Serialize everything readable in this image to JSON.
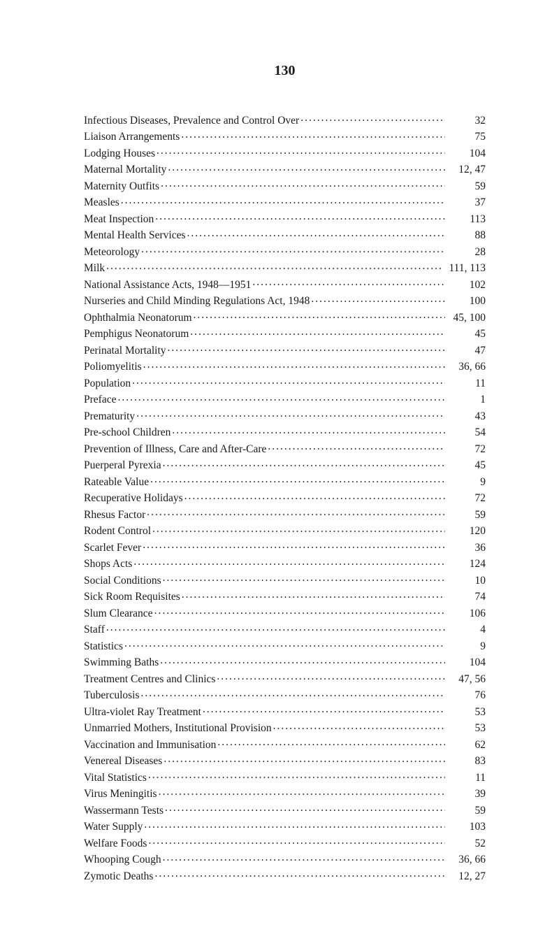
{
  "pageNumber": "130",
  "entries": [
    {
      "label": "Infectious Diseases, Prevalence and Control Over",
      "page": "32"
    },
    {
      "label": "Liaison Arrangements",
      "page": "75"
    },
    {
      "label": "Lodging Houses",
      "page": "104"
    },
    {
      "label": "Maternal Mortality",
      "page": "12, 47"
    },
    {
      "label": "Maternity Outfits",
      "page": "59"
    },
    {
      "label": "Measles",
      "page": "37"
    },
    {
      "label": "Meat Inspection",
      "page": "113"
    },
    {
      "label": "Mental Health Services",
      "page": "88"
    },
    {
      "label": "Meteorology",
      "page": "28"
    },
    {
      "label": "Milk",
      "page": "111, 113"
    },
    {
      "label": "National Assistance Acts, 1948—1951",
      "page": "102"
    },
    {
      "label": "Nurseries and Child Minding Regulations Act, 1948",
      "page": "100"
    },
    {
      "label": "Ophthalmia Neonatorum",
      "page": "45, 100"
    },
    {
      "label": "Pemphigus Neonatorum",
      "page": "45"
    },
    {
      "label": "Perinatal Mortality",
      "page": "47"
    },
    {
      "label": "Poliomyelitis",
      "page": "36, 66"
    },
    {
      "label": "Population",
      "page": "11"
    },
    {
      "label": "Preface",
      "page": "1"
    },
    {
      "label": "Prematurity",
      "page": "43"
    },
    {
      "label": "Pre-school Children",
      "page": "54"
    },
    {
      "label": "Prevention of Illness, Care and After-Care",
      "page": "72"
    },
    {
      "label": "Puerperal Pyrexia",
      "page": "45"
    },
    {
      "label": "Rateable Value",
      "page": "9"
    },
    {
      "label": "Recuperative Holidays",
      "page": "72"
    },
    {
      "label": "Rhesus Factor",
      "page": "59"
    },
    {
      "label": "Rodent Control",
      "page": "120"
    },
    {
      "label": "Scarlet Fever",
      "page": "36"
    },
    {
      "label": "Shops Acts",
      "page": "124"
    },
    {
      "label": "Social Conditions",
      "page": "10"
    },
    {
      "label": "Sick Room Requisites",
      "page": "74"
    },
    {
      "label": "Slum Clearance",
      "page": "106"
    },
    {
      "label": "Staff",
      "page": "4"
    },
    {
      "label": "Statistics",
      "page": "9"
    },
    {
      "label": "Swimming Baths",
      "page": "104"
    },
    {
      "label": "Treatment Centres and Clinics",
      "page": "47, 56"
    },
    {
      "label": "Tuberculosis",
      "page": "76"
    },
    {
      "label": "Ultra-violet Ray Treatment",
      "page": "53"
    },
    {
      "label": "Unmarried Mothers, Institutional Provision",
      "page": "53"
    },
    {
      "label": "Vaccination and Immunisation",
      "page": "62"
    },
    {
      "label": "Venereal Diseases",
      "page": "83"
    },
    {
      "label": "Vital Statistics",
      "page": "11"
    },
    {
      "label": "Virus Meningitis",
      "page": "39"
    },
    {
      "label": "Wassermann Tests",
      "page": "59"
    },
    {
      "label": "Water Supply",
      "page": "103"
    },
    {
      "label": "Welfare Foods",
      "page": "52"
    },
    {
      "label": "Whooping Cough",
      "page": "36, 66"
    },
    {
      "label": "Zymotic Deaths",
      "page": "12, 27"
    }
  ]
}
